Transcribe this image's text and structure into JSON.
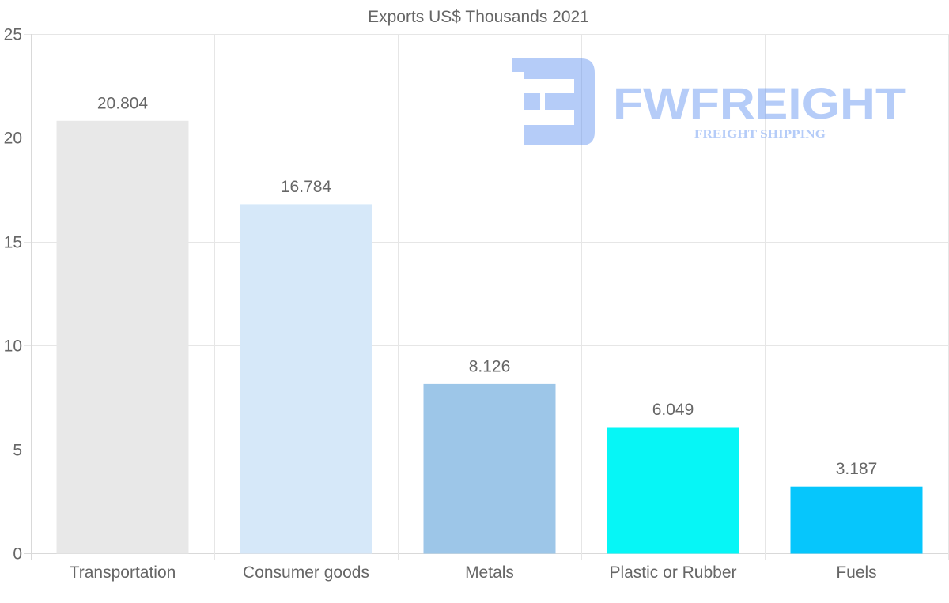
{
  "watermark": {
    "brand": "FWFREIGHT",
    "tagline": "FREIGHT SHIPPING"
  },
  "chart_data": {
    "type": "bar",
    "title": "Exports US$ Thousands 2021",
    "categories": [
      "Transportation",
      "Consumer goods",
      "Metals",
      "Plastic or Rubber",
      "Fuels"
    ],
    "values": [
      20.804,
      16.784,
      8.126,
      6.049,
      3.187
    ],
    "value_labels": [
      "20.804",
      "16.784",
      "8.126",
      "6.049",
      "3.187"
    ],
    "colors": [
      "#e8e8e8",
      "#d6e8f9",
      "#9dc6e8",
      "#06f6f6",
      "#06c6fc"
    ],
    "xlabel": "",
    "ylabel": "",
    "ylim": [
      0,
      25
    ],
    "yticks": [
      0,
      5,
      10,
      15,
      20,
      25
    ],
    "grid": true,
    "legend": "none"
  }
}
